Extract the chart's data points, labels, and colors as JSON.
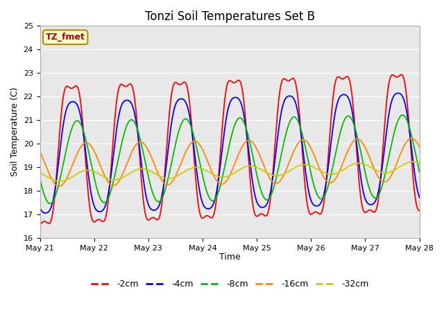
{
  "title": "Tonzi Soil Temperatures Set B",
  "xlabel": "Time",
  "ylabel": "Soil Temperature (C)",
  "ylim": [
    16.0,
    25.0
  ],
  "yticks": [
    16.0,
    17.0,
    18.0,
    19.0,
    20.0,
    21.0,
    22.0,
    23.0,
    24.0,
    25.0
  ],
  "annotation_text": "TZ_fmet",
  "annotation_box_color": "#ffffcc",
  "annotation_border_color": "#bb8800",
  "background_color": "#e8e8e8",
  "series_colors": {
    "-2cm": "#ff0000",
    "-4cm": "#0000ff",
    "-8cm": "#00bb00",
    "-16cm": "#ff8800",
    "-32cm": "#cccc00"
  },
  "xtick_labels": [
    "May 21",
    "May 22",
    "May 23",
    "May 24",
    "May 25",
    "May 26",
    "May 27",
    "May 28"
  ],
  "xtick_positions": [
    0,
    1,
    2,
    3,
    4,
    5,
    6,
    7
  ],
  "n_points": 1400,
  "duration_days": 7,
  "base_2cm": 19.5,
  "base_4cm": 19.4,
  "base_8cm": 19.2,
  "base_16cm": 19.1,
  "base_32cm": 18.6,
  "amp_2cm": 3.35,
  "amp_4cm": 2.55,
  "amp_8cm": 1.75,
  "amp_16cm": 0.92,
  "amp_32cm": 0.22,
  "peak_hour_2cm": 14.0,
  "peak_hour_4cm": 14.5,
  "peak_hour_8cm": 16.5,
  "peak_hour_16cm": 20.5,
  "peak_hour_32cm": 21.0,
  "trend": 0.0,
  "sharp_amp_2cm": 0.55,
  "sharp_amp_4cm": 0.2,
  "sharp_harmonic": 3
}
